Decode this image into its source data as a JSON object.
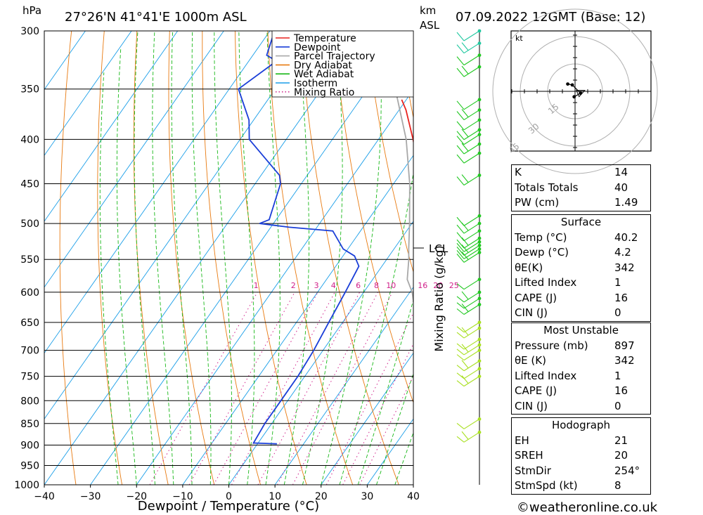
{
  "header": {
    "hpa_label": "hPa",
    "location": "27°26'N  41°41'E  1000m  ASL",
    "km_label": "km",
    "asl_label": "ASL",
    "datetime": "07.09.2022  12GMT  (Base: 12)"
  },
  "legend": [
    {
      "label": "Temperature",
      "color": "#e8221e",
      "style": "solid"
    },
    {
      "label": "Dewpoint",
      "color": "#1a3ed8",
      "style": "solid"
    },
    {
      "label": "Parcel Trajectory",
      "color": "#a8a8a8",
      "style": "solid"
    },
    {
      "label": "Dry Adiabat",
      "color": "#e87a10",
      "style": "solid"
    },
    {
      "label": "Wet Adiabat",
      "color": "#18b818",
      "style": "solid"
    },
    {
      "label": "Isotherm",
      "color": "#1a9ee8",
      "style": "solid"
    },
    {
      "label": "Mixing Ratio",
      "color": "#d0208a",
      "style": "dotted"
    }
  ],
  "chart_data": {
    "type": "line",
    "chart_kind": "skew-T log-P diagram",
    "xlabel": "Dewpoint / Temperature (°C)",
    "ylabel": "hPa",
    "x_ticks": [
      -40,
      -30,
      -20,
      -10,
      0,
      10,
      20,
      30,
      40
    ],
    "y_ticks": [
      300,
      350,
      400,
      450,
      500,
      550,
      600,
      650,
      700,
      750,
      800,
      850,
      900,
      950,
      1000
    ],
    "xlim": [
      -40,
      40
    ],
    "ylim": [
      1000,
      300
    ],
    "y_scale": "log",
    "mixing_ratio_axis_label": "Mixing Ratio (g/kg)",
    "mixing_ratio_labels": [
      "1",
      "2",
      "3",
      "4",
      "6",
      "8",
      "10",
      "16",
      "20",
      "25"
    ],
    "lcl_label": "LCL",
    "series": [
      {
        "name": "Temperature",
        "color": "#e8221e",
        "points": [
          [
            870,
            40.2
          ],
          [
            800,
            33.5
          ],
          [
            750,
            28.5
          ],
          [
            700,
            23.0
          ],
          [
            650,
            18.0
          ],
          [
            600,
            12.2
          ],
          [
            560,
            8.2
          ],
          [
            540,
            6.0
          ],
          [
            520,
            4.0
          ],
          [
            505,
            2.0
          ],
          [
            495,
            1.5
          ],
          [
            485,
            0.5
          ],
          [
            470,
            -2.3
          ],
          [
            450,
            -5.0
          ],
          [
            420,
            -9.0
          ],
          [
            400,
            -12.5
          ],
          [
            370,
            -18.5
          ],
          [
            360,
            -21.0
          ]
        ]
      },
      {
        "name": "Dewpoint",
        "color": "#1a3ed8",
        "points": [
          [
            897,
            4.2
          ],
          [
            895,
            -1.0
          ],
          [
            850,
            -1.5
          ],
          [
            800,
            -1.5
          ],
          [
            750,
            -1.5
          ],
          [
            700,
            -2.0
          ],
          [
            650,
            -3.0
          ],
          [
            600,
            -4.0
          ],
          [
            560,
            -5.0
          ],
          [
            545,
            -7.5
          ],
          [
            535,
            -11.0
          ],
          [
            510,
            -16.0
          ],
          [
            505,
            -26.0
          ],
          [
            500,
            -33.0
          ],
          [
            495,
            -31.5
          ],
          [
            450,
            -34.5
          ],
          [
            440,
            -36.0
          ],
          [
            400,
            -48.0
          ],
          [
            380,
            -51.0
          ],
          [
            350,
            -58.0
          ],
          [
            325,
            -54.0
          ],
          [
            320,
            -57.0
          ],
          [
            300,
            -59.0
          ]
        ]
      },
      {
        "name": "Parcel Trajectory",
        "color": "#a8a8a8",
        "points": [
          [
            850,
            38.0
          ],
          [
            800,
            33.0
          ],
          [
            750,
            27.5
          ],
          [
            700,
            21.5
          ],
          [
            650,
            16.0
          ],
          [
            600,
            10.5
          ],
          [
            580,
            7.5
          ],
          [
            550,
            4.8
          ],
          [
            535,
            3.2
          ],
          [
            500,
            -0.5
          ],
          [
            450,
            -6.5
          ],
          [
            400,
            -14.0
          ],
          [
            350,
            -24.0
          ],
          [
            310,
            -34.5
          ],
          [
            300,
            -37.5
          ]
        ]
      }
    ],
    "wind_barbs": {
      "pressures_hpa": [
        870,
        840,
        750,
        735,
        720,
        700,
        690,
        680,
        660,
        650,
        620,
        610,
        600,
        580,
        540,
        535,
        530,
        525,
        520,
        510,
        500,
        490,
        440,
        415,
        405,
        395,
        390,
        380,
        370,
        360,
        330,
        320,
        310,
        300
      ]
    },
    "hodograph": {
      "unit_label": "kt",
      "ring_labels": [
        "15",
        "30",
        "45"
      ],
      "points_kt": [
        [
          -4,
          4
        ],
        [
          -1.5,
          3.5
        ],
        [
          3,
          -1
        ],
        [
          -0.5,
          -3
        ]
      ]
    }
  },
  "indices": {
    "rows": [
      {
        "k": "K",
        "v": "14"
      },
      {
        "k": "Totals Totals",
        "v": "40"
      },
      {
        "k": "PW (cm)",
        "v": "1.49"
      }
    ]
  },
  "surface": {
    "title": "Surface",
    "rows": [
      {
        "k": "Temp (°C)",
        "v": "40.2"
      },
      {
        "k": "Dewp (°C)",
        "v": "4.2"
      },
      {
        "k": "θE(K)",
        "v": "342"
      },
      {
        "k": "Lifted Index",
        "v": "1"
      },
      {
        "k": "CAPE (J)",
        "v": "16"
      },
      {
        "k": "CIN (J)",
        "v": "0"
      }
    ]
  },
  "most_unstable": {
    "title": "Most Unstable",
    "rows": [
      {
        "k": "Pressure (mb)",
        "v": "897"
      },
      {
        "k": "θE (K)",
        "v": "342"
      },
      {
        "k": "Lifted Index",
        "v": "1"
      },
      {
        "k": "CAPE (J)",
        "v": "16"
      },
      {
        "k": "CIN (J)",
        "v": "0"
      }
    ]
  },
  "hodograph_table": {
    "title": "Hodograph",
    "rows": [
      {
        "k": "EH",
        "v": "21"
      },
      {
        "k": "SREH",
        "v": "20"
      },
      {
        "k": "StmDir",
        "v": "254°"
      },
      {
        "k": "StmSpd (kt)",
        "v": "8"
      }
    ]
  },
  "footer": {
    "copyright": "©weatheronline.co.uk"
  }
}
